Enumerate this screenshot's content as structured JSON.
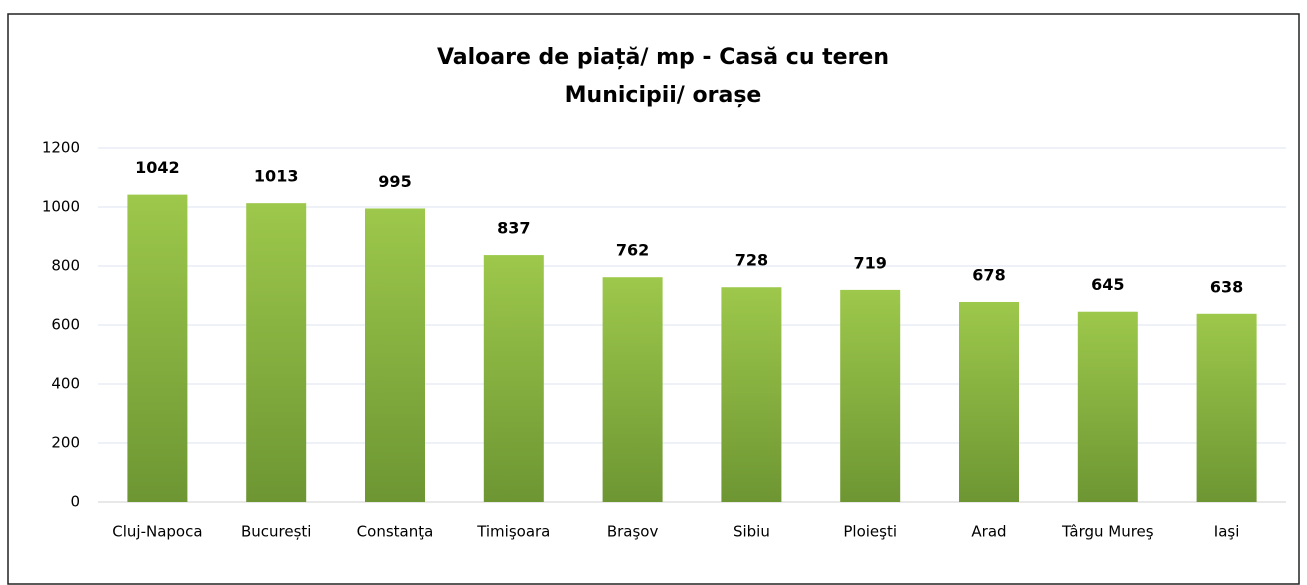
{
  "chart_data": {
    "type": "bar",
    "title": "Valoare de piață/ mp - Casă cu teren",
    "subtitle": "Municipii/ orașe",
    "categories": [
      "Cluj-Napoca",
      "București",
      "Constanţa",
      "Timişoara",
      "Braşov",
      "Sibiu",
      "Ploieşti",
      "Arad",
      "Târgu Mureş",
      "Iaşi"
    ],
    "values": [
      1042,
      1013,
      995,
      837,
      762,
      728,
      719,
      678,
      645,
      638
    ],
    "color": "#8fbc45",
    "ylim": [
      0,
      1200
    ],
    "yticks": [
      0,
      200,
      400,
      600,
      800,
      1000,
      1200
    ],
    "grid": true
  }
}
